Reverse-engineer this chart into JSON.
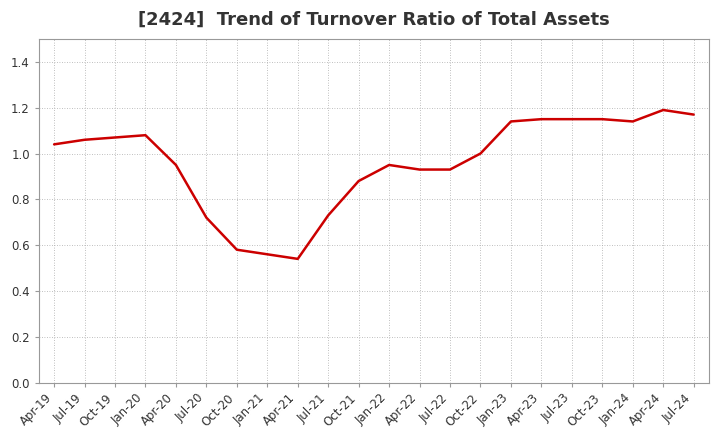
{
  "title": "[2424]  Trend of Turnover Ratio of Total Assets",
  "line_color": "#CC0000",
  "line_width": 1.8,
  "background_color": "#ffffff",
  "grid_color": "#aaaaaa",
  "ylim": [
    0.0,
    1.5
  ],
  "yticks": [
    0.0,
    0.2,
    0.4,
    0.6,
    0.8,
    1.0,
    1.2,
    1.4
  ],
  "values": [
    1.04,
    1.06,
    1.07,
    1.08,
    0.95,
    0.72,
    0.58,
    0.56,
    0.54,
    0.73,
    0.88,
    0.95,
    0.93,
    0.93,
    1.0,
    1.14,
    1.15,
    1.15,
    1.15,
    1.14,
    1.19,
    1.17
  ],
  "xtick_labels": [
    "Apr-19",
    "Jul-19",
    "Oct-19",
    "Jan-20",
    "Apr-20",
    "Jul-20",
    "Oct-20",
    "Jan-21",
    "Apr-21",
    "Jul-21",
    "Oct-21",
    "Jan-22",
    "Apr-22",
    "Jul-22",
    "Oct-22",
    "Jan-23",
    "Apr-23",
    "Jul-23",
    "Oct-23",
    "Jan-24",
    "Apr-24",
    "Jul-24"
  ],
  "title_fontsize": 13,
  "tick_fontsize": 8.5,
  "title_color": "#333333",
  "tick_color": "#333333",
  "spine_color": "#999999"
}
